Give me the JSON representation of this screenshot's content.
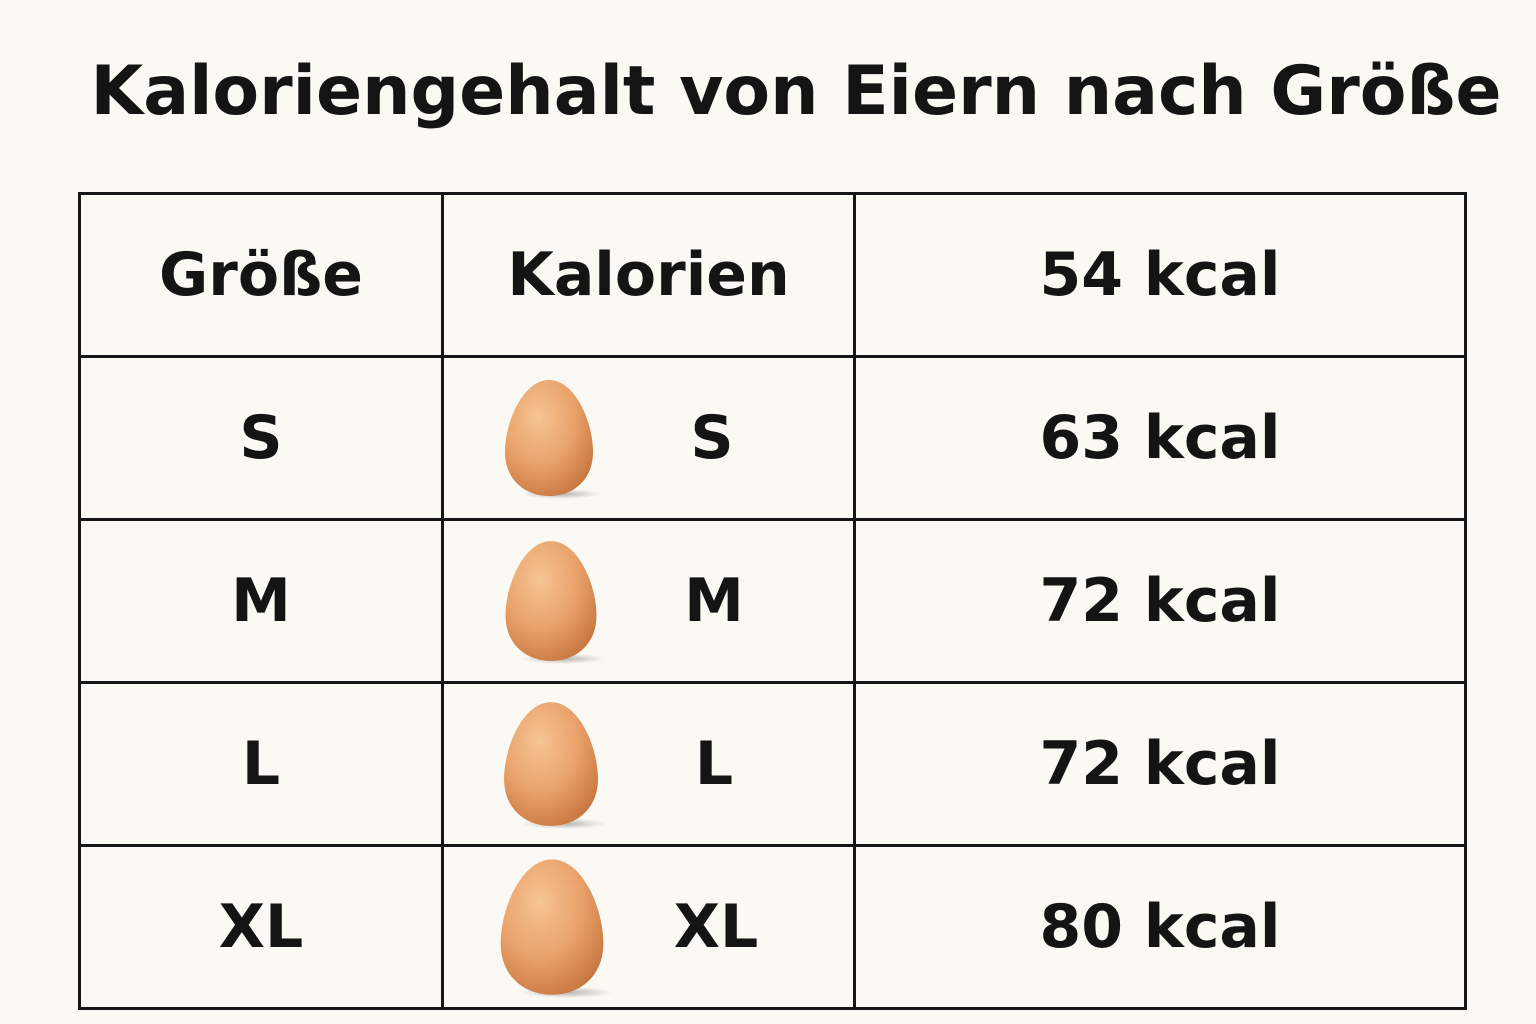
{
  "title": "Kaloriengehalt von Eiern nach Größe",
  "header": {
    "size_label": "Größe",
    "calories_label": "Kalorien",
    "value": "54 kcal"
  },
  "rows": [
    {
      "size": "S",
      "egg_label": "S",
      "calories": "63 kcal"
    },
    {
      "size": "M",
      "egg_label": "M",
      "calories": "72 kcal"
    },
    {
      "size": "L",
      "egg_label": "L",
      "calories": "72 kcal"
    },
    {
      "size": "XL",
      "egg_label": "XL",
      "calories": "80 kcal"
    }
  ],
  "icons": {
    "egg": "egg-icon"
  },
  "colors": {
    "background": "#fbf9f4",
    "text": "#141414",
    "grid": "#161616",
    "egg": "#e9a874"
  }
}
